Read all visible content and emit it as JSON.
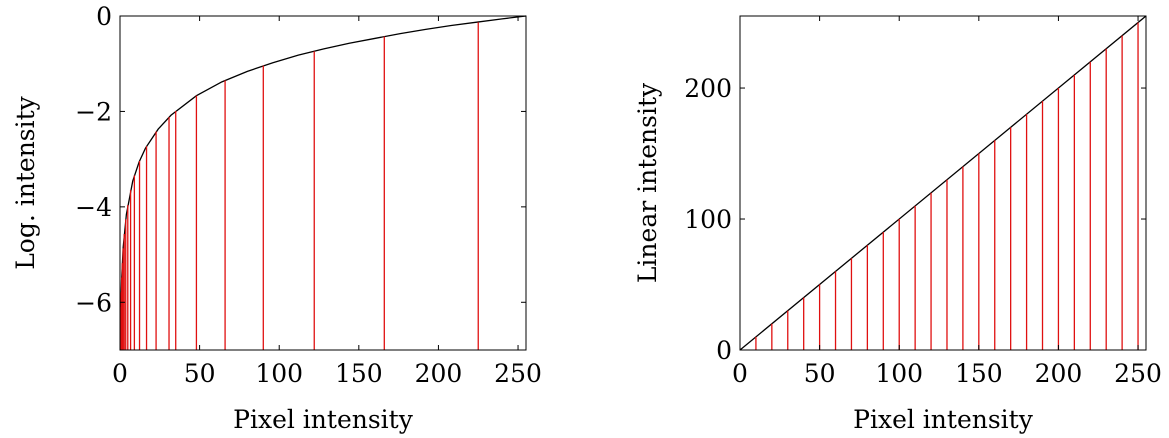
{
  "chart_data": [
    {
      "type": "line",
      "xlabel": "Pixel intensity",
      "ylabel": "Log. intensity",
      "xlim": [
        0,
        255
      ],
      "ylim": [
        -7,
        0
      ],
      "xticks": [
        0,
        50,
        100,
        150,
        200,
        250
      ],
      "yticks": [
        0,
        -2,
        -4,
        -6
      ],
      "ytick_labels": [
        "0",
        "−2",
        "−4",
        "−6"
      ],
      "grid": false,
      "series": [
        {
          "style": "black curve",
          "x": [
            0.5,
            1,
            2,
            4,
            8,
            12,
            16,
            24,
            32,
            48,
            64,
            80,
            96,
            112,
            128,
            144,
            160,
            176,
            192,
            208,
            224,
            240,
            255
          ],
          "y": [
            -6.24,
            -5.54,
            -4.85,
            -4.16,
            -3.46,
            -3.06,
            -2.77,
            -2.37,
            -2.08,
            -1.67,
            -1.38,
            -1.16,
            -0.98,
            -0.82,
            -0.69,
            -0.57,
            -0.47,
            -0.37,
            -0.28,
            -0.2,
            -0.13,
            -0.06,
            0
          ]
        },
        {
          "style": "red stems",
          "x": [
            0.23,
            0.31,
            0.42,
            0.57,
            0.78,
            1.06,
            1.44,
            1.95,
            2.65,
            3.6,
            4.89,
            6.65,
            9.03,
            12.27,
            16.67,
            22.66,
            30.79,
            35,
            48,
            66,
            90,
            122,
            166,
            225
          ],
          "y": [
            -7.0,
            -6.7,
            -6.4,
            -6.1,
            -5.79,
            -5.48,
            -5.18,
            -4.87,
            -4.57,
            -4.26,
            -3.96,
            -3.65,
            -3.34,
            -3.04,
            -2.73,
            -2.42,
            -2.12,
            -1.99,
            -1.67,
            -1.35,
            -1.04,
            -0.74,
            -0.43,
            -0.13
          ]
        }
      ]
    },
    {
      "type": "line",
      "xlabel": "Pixel intensity",
      "ylabel": "Linear intensity",
      "xlim": [
        0,
        255
      ],
      "ylim": [
        0,
        255
      ],
      "xticks": [
        0,
        50,
        100,
        150,
        200,
        250
      ],
      "yticks": [
        0,
        100,
        200
      ],
      "ytick_labels": [
        "0",
        "100",
        "200"
      ],
      "grid": false,
      "series": [
        {
          "style": "black line",
          "x": [
            0,
            255
          ],
          "y": [
            0,
            255
          ]
        },
        {
          "style": "red stems",
          "x": [
            10,
            20,
            30,
            40,
            50,
            60,
            70,
            80,
            90,
            100,
            110,
            120,
            130,
            140,
            150,
            160,
            170,
            180,
            190,
            200,
            210,
            220,
            230,
            240,
            250
          ],
          "y": [
            10,
            20,
            30,
            40,
            50,
            60,
            70,
            80,
            90,
            100,
            110,
            120,
            130,
            140,
            150,
            160,
            170,
            180,
            190,
            200,
            210,
            220,
            230,
            240,
            250
          ]
        }
      ]
    }
  ]
}
